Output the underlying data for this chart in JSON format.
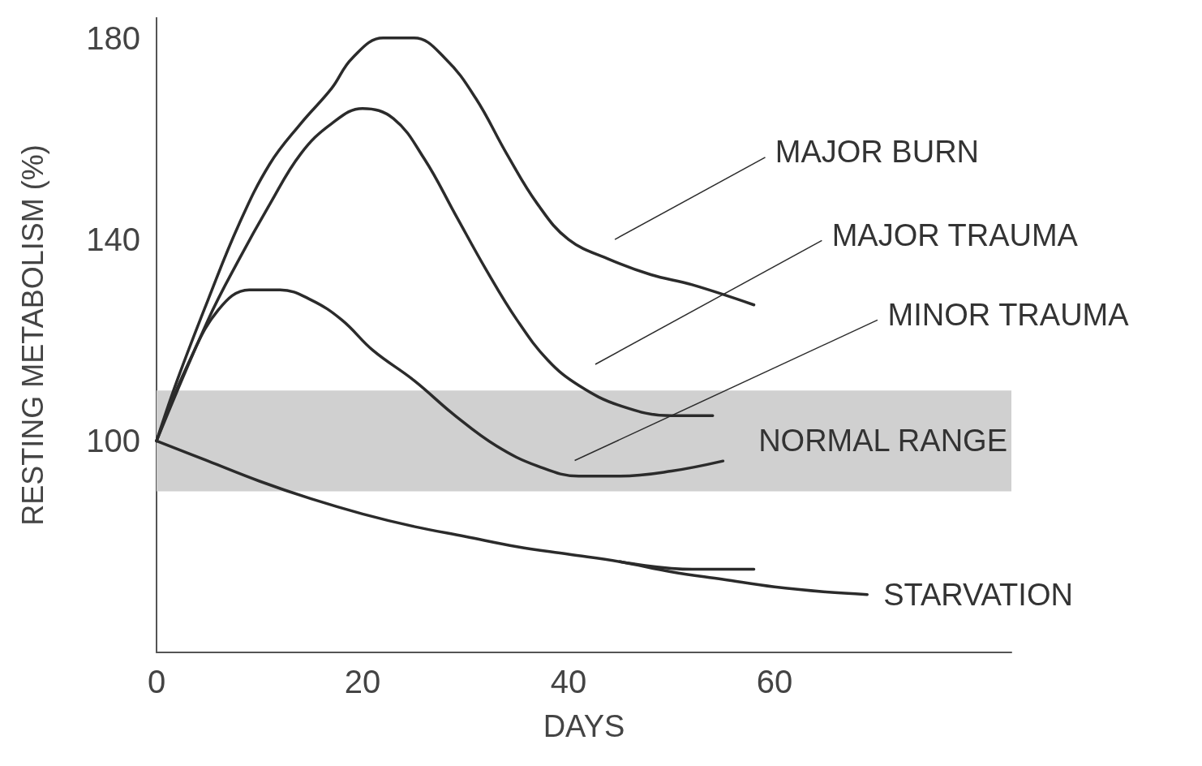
{
  "chart_data": {
    "type": "line",
    "xlabel": "DAYS",
    "ylabel": "RESTING METABOLISM (%)",
    "xlim": [
      0,
      83
    ],
    "ylim": [
      58,
      184
    ],
    "xticks": [
      0,
      20,
      40,
      60
    ],
    "yticks": [
      100,
      140,
      180
    ],
    "grid": false,
    "legend": false,
    "marker": "none",
    "line_style": "solid",
    "bands": [
      {
        "axis": "y",
        "from": 90,
        "to": 110,
        "label": "NORMAL RANGE",
        "color": "#d0d0d0"
      }
    ],
    "series": [
      {
        "name": "MAJOR BURN",
        "color": "#2b2b2b",
        "x": [
          0,
          2,
          5,
          8,
          11,
          14,
          17,
          19,
          22,
          25,
          28,
          31,
          34,
          37,
          40,
          44,
          48,
          52,
          58
        ],
        "values": [
          100,
          112,
          128,
          143,
          155,
          163,
          170,
          176,
          180,
          180,
          176,
          168,
          157,
          147,
          140,
          136,
          133,
          131,
          127
        ]
      },
      {
        "name": "MAJOR TRAUMA",
        "color": "#2b2b2b",
        "x": [
          0,
          5,
          8,
          11,
          14,
          17,
          20,
          23,
          26,
          29,
          32,
          35,
          38,
          41,
          45,
          50,
          54
        ],
        "values": [
          100,
          124,
          136,
          147,
          157,
          163,
          166,
          164,
          156,
          145,
          134,
          124,
          116,
          111,
          107,
          105,
          105
        ]
      },
      {
        "name": "MINOR TRAUMA",
        "color": "#2b2b2b",
        "x": [
          0,
          3,
          6,
          9,
          12,
          15,
          18,
          21,
          25,
          29,
          33,
          37,
          41,
          45,
          50,
          55
        ],
        "values": [
          100,
          115,
          126,
          130,
          130,
          128,
          124,
          118,
          112,
          105,
          99,
          95,
          93,
          93,
          94,
          96
        ]
      },
      {
        "name": "STARVATION",
        "color": "#2b2b2b",
        "x": [
          0,
          5,
          10,
          15,
          20,
          25,
          30,
          35,
          40,
          45,
          50,
          55,
          60,
          65,
          69
        ],
        "values": [
          100,
          96,
          92,
          88.5,
          85.5,
          83,
          81,
          79,
          77.5,
          76,
          74,
          72.5,
          71,
          70,
          69.5
        ]
      },
      {
        "color": "#2b2b2b",
        "x": [
          45,
          52,
          58
        ],
        "values": [
          76,
          74.5,
          74.5
        ]
      }
    ]
  }
}
